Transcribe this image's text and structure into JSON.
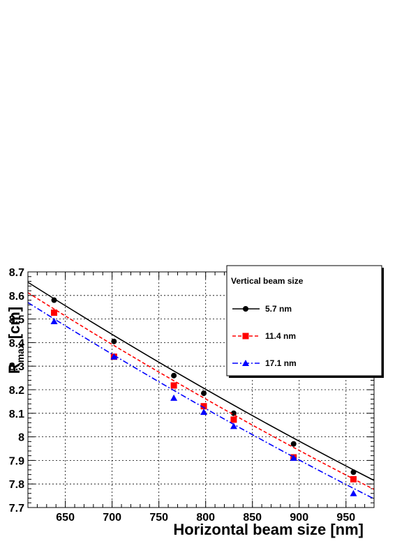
{
  "chart_data": {
    "type": "line",
    "title": "",
    "xlabel": "Horizontal beam size [nm]",
    "ylabel_main": "R",
    "ylabel_sub": "max",
    "ylabel_unit": "[cm]",
    "xlim": [
      610,
      980
    ],
    "ylim": [
      7.7,
      8.7
    ],
    "xticks": [
      650,
      700,
      750,
      800,
      850,
      900,
      950
    ],
    "yticks": [
      7.7,
      7.8,
      7.9,
      8.0,
      8.1,
      8.2,
      8.3,
      8.4,
      8.5,
      8.6,
      8.7
    ],
    "ytick_labels": [
      "7.7",
      "7.8",
      "7.9",
      "8",
      "8.1",
      "8.2",
      "8.3",
      "8.4",
      "8.5",
      "8.6",
      "8.7"
    ],
    "grid": true,
    "legend": {
      "title": "Vertical beam size",
      "placement": "top-right"
    },
    "series": [
      {
        "name": "5.7 nm",
        "color": "#000000",
        "marker": "circle",
        "line_style": "solid",
        "x": [
          638,
          702,
          766,
          798,
          830,
          894,
          958
        ],
        "y": [
          8.58,
          8.405,
          8.26,
          8.185,
          8.1,
          7.97,
          7.85
        ],
        "fit": {
          "x": [
            610,
            980
          ],
          "y": [
            8.656,
            7.815
          ]
        }
      },
      {
        "name": "11.4 nm",
        "color": "#ff0000",
        "marker": "square",
        "line_style": "dashed",
        "x": [
          638,
          702,
          766,
          798,
          830,
          894,
          958
        ],
        "y": [
          8.527,
          8.34,
          8.218,
          8.13,
          8.073,
          7.913,
          7.82
        ],
        "fit": {
          "x": [
            610,
            980
          ],
          "y": [
            8.612,
            7.777
          ]
        }
      },
      {
        "name": "17.1 nm",
        "color": "#0000ff",
        "marker": "triangle",
        "line_style": "dash-dot",
        "x": [
          638,
          702,
          766,
          798,
          830,
          894,
          958
        ],
        "y": [
          8.49,
          8.34,
          8.165,
          8.105,
          8.045,
          7.91,
          7.76
        ],
        "fit": {
          "x": [
            610,
            980
          ],
          "y": [
            8.57,
            7.737
          ]
        }
      }
    ]
  }
}
